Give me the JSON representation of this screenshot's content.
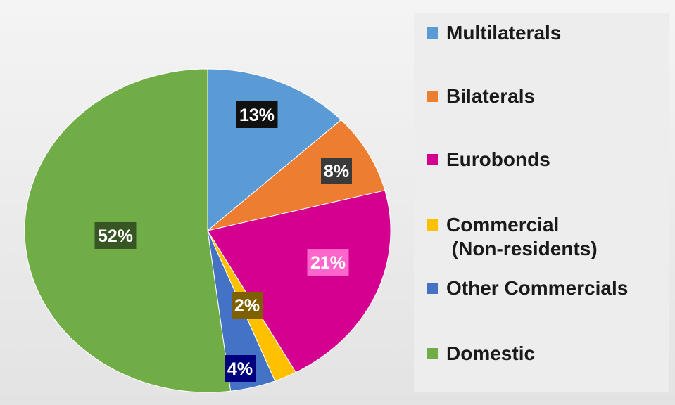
{
  "chart_data": {
    "type": "pie",
    "title": "",
    "slices": [
      {
        "label": "Multilaterals",
        "value": 13,
        "data_label": "13%",
        "color": "#5b9bd5",
        "label_bg": "#111111",
        "label_fg": "#ffffff"
      },
      {
        "label": "Bilaterals",
        "value": 8,
        "data_label": "8%",
        "color": "#ed7d31",
        "label_bg": "#3a3a3a",
        "label_fg": "#ffffff"
      },
      {
        "label": "Eurobonds",
        "value": 21,
        "data_label": "21%",
        "color": "#d4008f",
        "label_bg": "#ff66cc",
        "label_fg": "#ffffff"
      },
      {
        "label": "Commercial\n (Non-residents)",
        "value": 2,
        "data_label": "2%",
        "color": "#ffc000",
        "label_bg": "#7f6000",
        "label_fg": "#ffffff"
      },
      {
        "label": "Other Commercials",
        "value": 4,
        "data_label": "4%",
        "color": "#4472c4",
        "label_bg": "#00007f",
        "label_fg": "#ffffff"
      },
      {
        "label": "Domestic",
        "value": 52,
        "data_label": "52%",
        "color": "#70ad47",
        "label_bg": "#375623",
        "label_fg": "#ffffff"
      }
    ],
    "legend_position": "right"
  }
}
